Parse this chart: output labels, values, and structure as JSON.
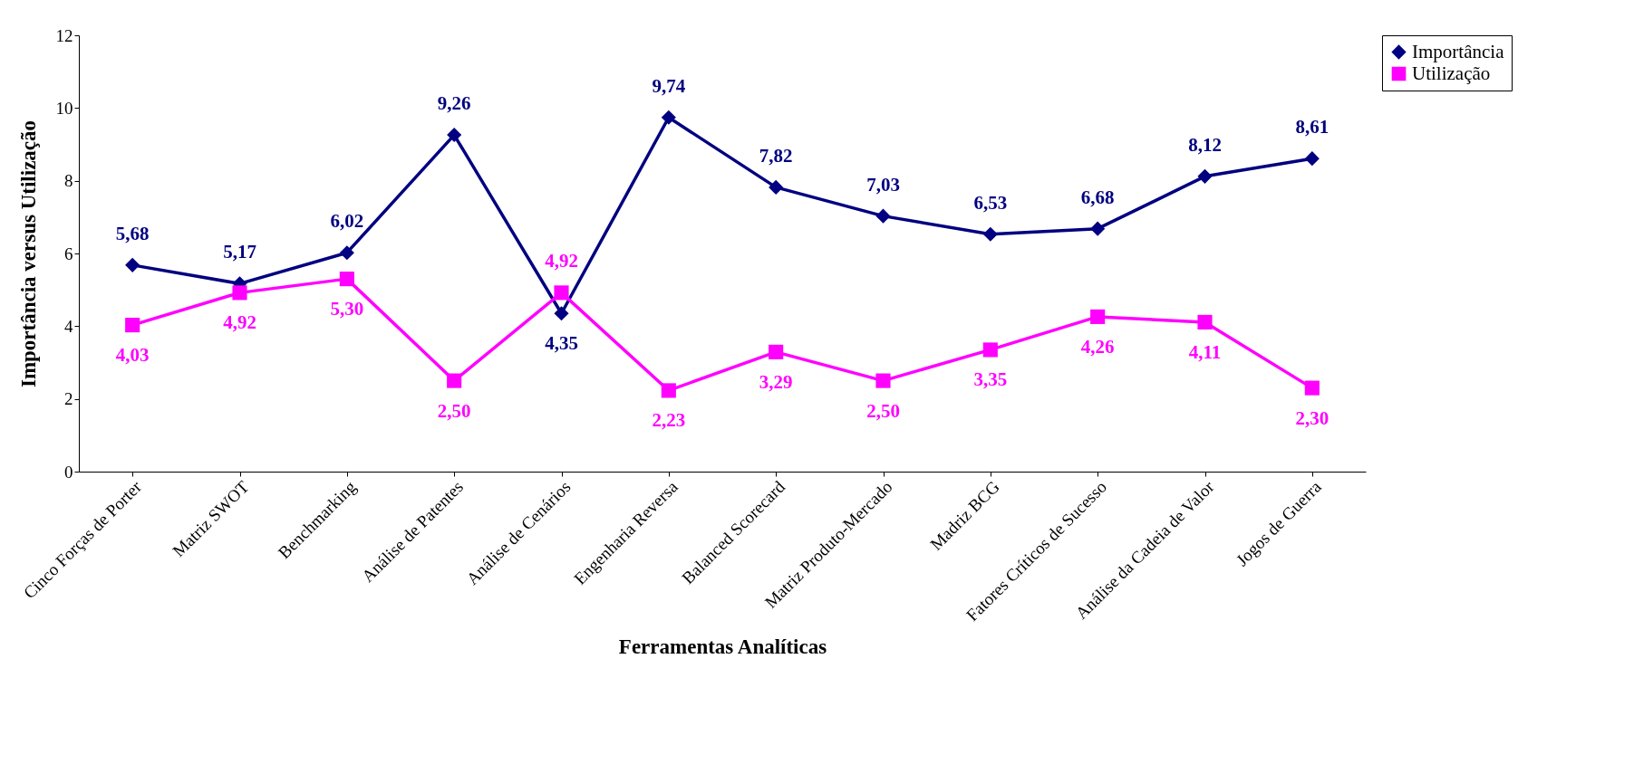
{
  "chart_data": {
    "type": "line",
    "xlabel": "Ferramentas Analíticas",
    "ylabel": "Importância versus Utilização",
    "categories": [
      "Cinco Forças de Porter",
      "Matriz SWOT",
      "Benchmarking",
      "Análise de Patentes",
      "Análise de Cenários",
      "Engenharia Reversa",
      "Balanced Scorecard",
      "Matriz Produto-Mercado",
      "Madriz BCG",
      "Fatores Críticos de Sucesso",
      "Análise da Cadeia de Valor",
      "Jogos de Guerra"
    ],
    "series": [
      {
        "name": "Importância",
        "color": "#000080",
        "marker": "diamond",
        "values": [
          5.68,
          5.17,
          6.02,
          9.26,
          4.35,
          9.74,
          7.82,
          7.03,
          6.53,
          6.68,
          8.12,
          8.61
        ],
        "value_labels": [
          "5,68",
          "5,17",
          "6,02",
          "9,26",
          "4,35",
          "9,74",
          "7,82",
          "7,03",
          "6,53",
          "6,68",
          "8,12",
          "8,61"
        ]
      },
      {
        "name": "Utilização",
        "color": "#ff00ff",
        "marker": "square",
        "values": [
          4.03,
          4.92,
          5.3,
          2.5,
          4.92,
          2.23,
          3.29,
          2.5,
          3.35,
          4.26,
          4.11,
          2.3
        ],
        "value_labels": [
          "4,03",
          "4,92",
          "5,30",
          "2,50",
          "4,92",
          "2,23",
          "3,29",
          "2,50",
          "3,35",
          "4,26",
          "4,11",
          "2,30"
        ]
      }
    ],
    "ylim": [
      0,
      12
    ],
    "yticks": [
      0,
      2,
      4,
      6,
      8,
      10,
      12
    ],
    "grid": false,
    "legend": "right"
  }
}
